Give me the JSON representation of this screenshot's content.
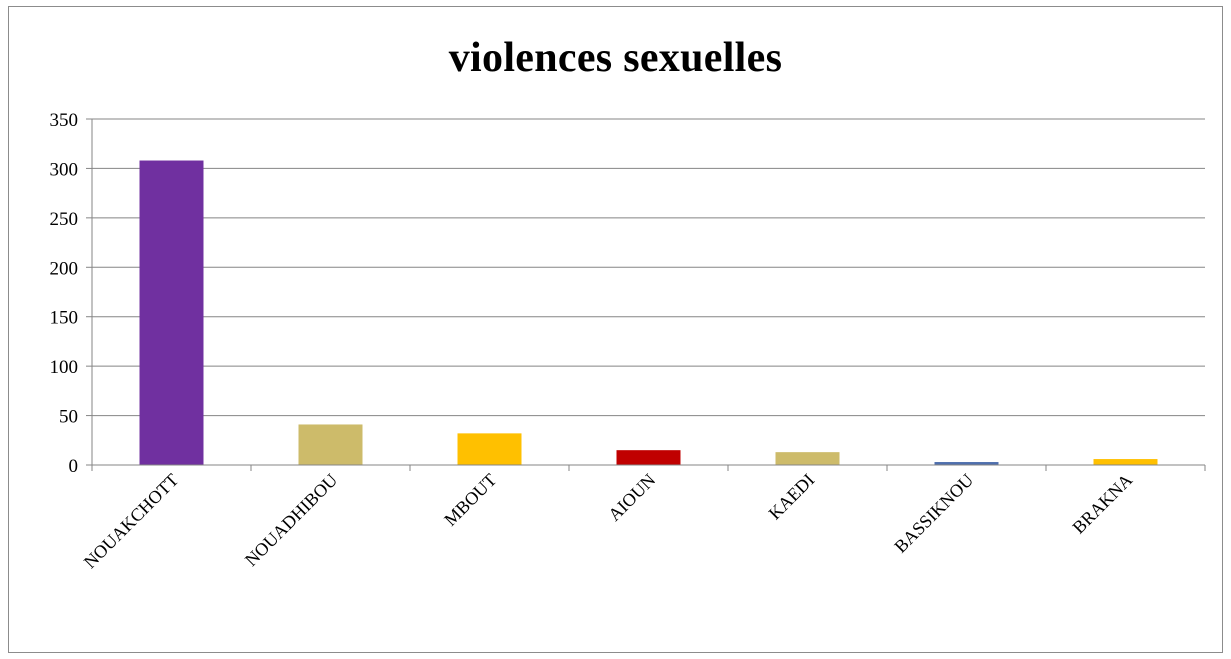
{
  "chart_data": {
    "type": "bar",
    "title": "violences sexuelles",
    "xlabel": "",
    "ylabel": "",
    "categories": [
      "NOUAKCHOTT",
      "NOUADHIBOU",
      "MBOUT",
      "AIOUN",
      "KAEDI",
      "BASSIKNOU",
      "BRAKNA"
    ],
    "values": [
      308,
      41,
      32,
      15,
      13,
      3,
      6
    ],
    "bar_colors": [
      "#7030a0",
      "#cdbb6a",
      "#ffc000",
      "#c00000",
      "#cdbb6a",
      "#4f6fad",
      "#ffc000"
    ],
    "ylim": [
      0,
      350
    ],
    "yticks": [
      "0",
      "50",
      "100",
      "150",
      "200",
      "250",
      "300",
      "350"
    ],
    "grid": true,
    "legend": "none"
  }
}
